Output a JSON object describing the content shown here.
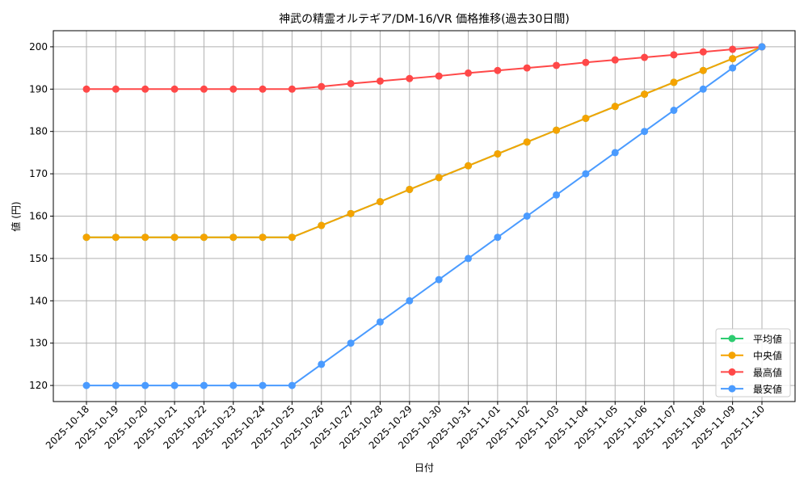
{
  "chart_data": {
    "type": "line",
    "title": "神武の精霊オルテギア/DM-16/VR 価格推移(過去30日間)",
    "xlabel": "日付",
    "ylabel": "値 (円)",
    "ylim": [
      116.2,
      203.8
    ],
    "yticks": [
      120,
      130,
      140,
      150,
      160,
      170,
      180,
      190,
      200
    ],
    "grid": true,
    "legend_position": "bottom-right",
    "x": [
      "2025-10-18",
      "2025-10-19",
      "2025-10-20",
      "2025-10-21",
      "2025-10-22",
      "2025-10-23",
      "2025-10-24",
      "2025-10-25",
      "2025-10-26",
      "2025-10-27",
      "2025-10-28",
      "2025-10-29",
      "2025-10-30",
      "2025-10-31",
      "2025-11-01",
      "2025-11-02",
      "2025-11-03",
      "2025-11-04",
      "2025-11-05",
      "2025-11-06",
      "2025-11-07",
      "2025-11-08",
      "2025-11-09",
      "2025-11-10"
    ],
    "series": [
      {
        "name": "平均値",
        "color": "#2ecc71",
        "values": [
          155,
          155,
          155,
          155,
          155,
          155,
          155,
          155,
          157.8,
          160.6,
          163.4,
          166.3,
          169.1,
          171.9,
          174.7,
          177.5,
          180.3,
          183.1,
          185.9,
          188.8,
          191.6,
          194.4,
          197.2,
          200
        ]
      },
      {
        "name": "中央値",
        "color": "#f5a300",
        "values": [
          155,
          155,
          155,
          155,
          155,
          155,
          155,
          155,
          157.8,
          160.6,
          163.4,
          166.3,
          169.1,
          171.9,
          174.7,
          177.5,
          180.3,
          183.1,
          185.9,
          188.8,
          191.6,
          194.4,
          197.2,
          200
        ]
      },
      {
        "name": "最高値",
        "color": "#ff4848",
        "values": [
          190,
          190,
          190,
          190,
          190,
          190,
          190,
          190,
          190.6,
          191.3,
          191.9,
          192.5,
          193.1,
          193.8,
          194.4,
          195,
          195.6,
          196.3,
          196.9,
          197.5,
          198.1,
          198.8,
          199.4,
          200
        ]
      },
      {
        "name": "最安値",
        "color": "#4a9bff",
        "values": [
          120,
          120,
          120,
          120,
          120,
          120,
          120,
          120,
          125,
          130,
          135,
          140,
          145,
          150,
          155,
          160,
          165,
          170,
          175,
          180,
          185,
          190,
          195,
          200
        ]
      }
    ]
  }
}
